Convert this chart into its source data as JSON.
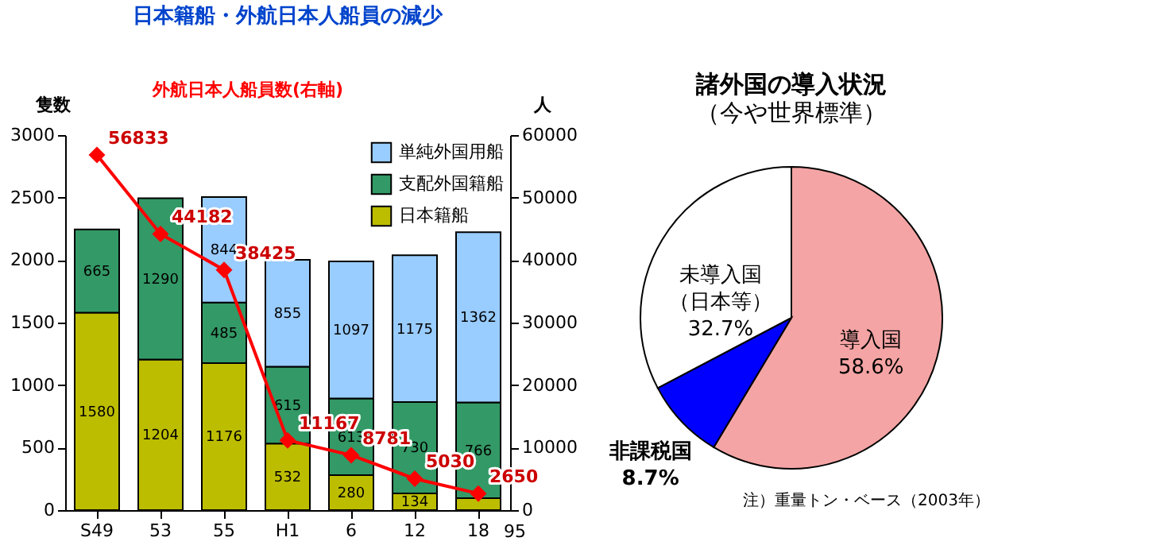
{
  "chart_data": [
    {
      "type": "bar",
      "title": "日本籍船・外航日本人船員の減少",
      "ylabel": "隻数",
      "y2label": "人",
      "annotations": [
        "外航日本人船員数(右軸)"
      ],
      "categories": [
        "S49",
        "53",
        "55",
        "H1",
        "6",
        "12",
        "18"
      ],
      "stacked": true,
      "data_labels": true,
      "legend": "top right",
      "marker": "diamond",
      "series": [
        {
          "name": "日本籍船",
          "color": "#bdbd00",
          "values": [
            1580,
            1204,
            1176,
            532,
            280,
            134,
            95
          ]
        },
        {
          "name": "支配外国籍船",
          "color": "#339966",
          "values": [
            665,
            1290,
            485,
            615,
            613,
            730,
            766
          ]
        },
        {
          "name": "単純外国用船",
          "color": "#99ccff",
          "values": [
            null,
            null,
            844,
            855,
            1097,
            1175,
            1362
          ]
        },
        {
          "type": "line",
          "axis": "y2",
          "color": "#ff0000",
          "values": [
            56833,
            44182,
            38425,
            11167,
            8781,
            5030,
            2650
          ]
        }
      ],
      "ylim": [
        0,
        3000
      ],
      "yticks": [
        0,
        500,
        1000,
        1500,
        2000,
        2500,
        3000
      ],
      "y2lim": [
        0,
        60000
      ],
      "y2ticks": [
        0,
        10000,
        20000,
        30000,
        40000,
        50000,
        60000
      ]
    },
    {
      "type": "pie",
      "title": "諸外国の導入状況",
      "subtitle": "（今や世界標準）",
      "annotations": [
        "注）重量トン・ベース（2003年）"
      ],
      "categories": [
        "導入国",
        "非課税国",
        "未導入国（日本等）"
      ],
      "values": [
        58.6,
        8.7,
        32.7
      ],
      "colors": [
        "#f4a4a4",
        "#0000ff",
        "#ffffff"
      ],
      "value_labels": [
        "58.6%",
        "8.7%",
        "32.7%"
      ]
    }
  ]
}
